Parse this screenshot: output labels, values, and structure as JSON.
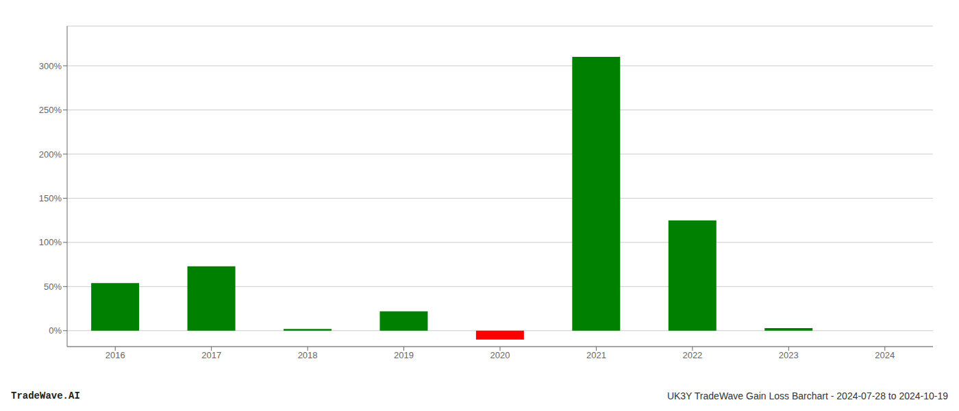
{
  "chart_data": {
    "type": "bar",
    "categories": [
      "2016",
      "2017",
      "2018",
      "2019",
      "2020",
      "2021",
      "2022",
      "2023",
      "2024"
    ],
    "values": [
      0.54,
      0.73,
      0.02,
      0.22,
      -0.1,
      3.1,
      1.25,
      0.03,
      0.0
    ],
    "colors": [
      "#008000",
      "#008000",
      "#008000",
      "#008000",
      "#ff0000",
      "#008000",
      "#008000",
      "#008000",
      "#008000"
    ],
    "ylim": [
      -0.18,
      3.45
    ],
    "yticks": [
      {
        "value": 0,
        "label": "0%"
      },
      {
        "value": 0.5,
        "label": "50%"
      },
      {
        "value": 1.0,
        "label": "100%"
      },
      {
        "value": 1.5,
        "label": "150%"
      },
      {
        "value": 2.0,
        "label": "200%"
      },
      {
        "value": 2.5,
        "label": "250%"
      },
      {
        "value": 3.0,
        "label": "300%"
      }
    ],
    "grid": true,
    "annotations": [
      "TradeWave.AI",
      "UK3Y TradeWave Gain Loss Barchart - 2024-07-28 to 2024-10-19"
    ]
  }
}
